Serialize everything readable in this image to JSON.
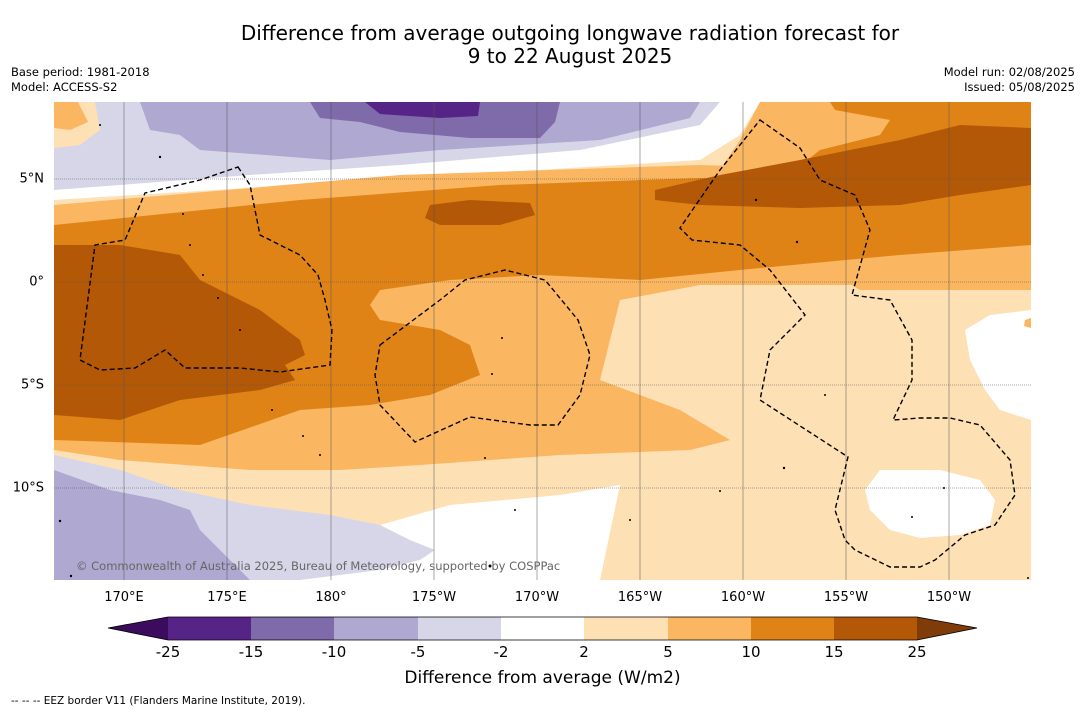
{
  "title_line1": "Difference from average outgoing longwave radiation forecast for",
  "title_line2": "9 to 22 August 2025",
  "base_period": "Base period: 1981-2018",
  "model": "Model: ACCESS-S2",
  "model_run": "Model run: 02/08/2025",
  "issued": "Issued: 05/08/2025",
  "copyright": "© Commonwealth of Australia 2025, Bureau of Meteorology, supported by COSPPac",
  "lon_labels": [
    "170°E",
    "175°E",
    "180°",
    "175°W",
    "170°W",
    "165°W",
    "160°W",
    "155°W",
    "150°W"
  ],
  "lat_labels": [
    "5°N",
    "0°",
    "5°S",
    "10°S"
  ],
  "colorbar": {
    "title": "Difference from average (W/m2)",
    "ticks": [
      "-25",
      "-15",
      "-10",
      "-5",
      "-2",
      "2",
      "5",
      "10",
      "15",
      "25"
    ],
    "colors": {
      "below_-25": "#3b0c5e",
      "-25_-15": "#562487",
      "-15_-10": "#7f6aaa",
      "-10_-5": "#afa8d1",
      "-5_-2": "#d7d6e9",
      "-2_2": "#ffffff",
      "2_5": "#fde0b4",
      "5_10": "#fbb661",
      "10_15": "#e08316",
      "15_25": "#b35806",
      "above_25": "#7f3b08"
    }
  },
  "footnote": "--  --  -- EEZ border V11 (Flanders Marine Institute, 2019)."
}
